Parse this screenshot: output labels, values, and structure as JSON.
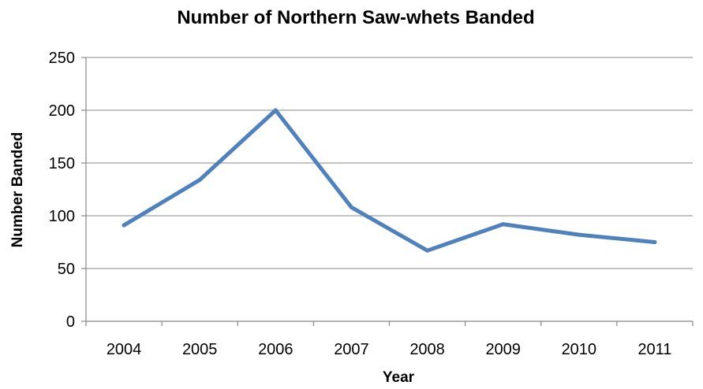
{
  "chart_data": {
    "type": "line",
    "title": "Number of Northern Saw-whets Banded",
    "xlabel": "Year",
    "ylabel": "Number Banded",
    "categories": [
      "2004",
      "2005",
      "2006",
      "2007",
      "2008",
      "2009",
      "2010",
      "2011"
    ],
    "series": [
      {
        "values": [
          91,
          134,
          200,
          108,
          67,
          92,
          82,
          75
        ],
        "color": "#4f81bd"
      }
    ],
    "ylim": [
      0,
      250
    ],
    "yticks": [
      0,
      50,
      100,
      150,
      200,
      250
    ],
    "grid": true,
    "legend": "none"
  }
}
